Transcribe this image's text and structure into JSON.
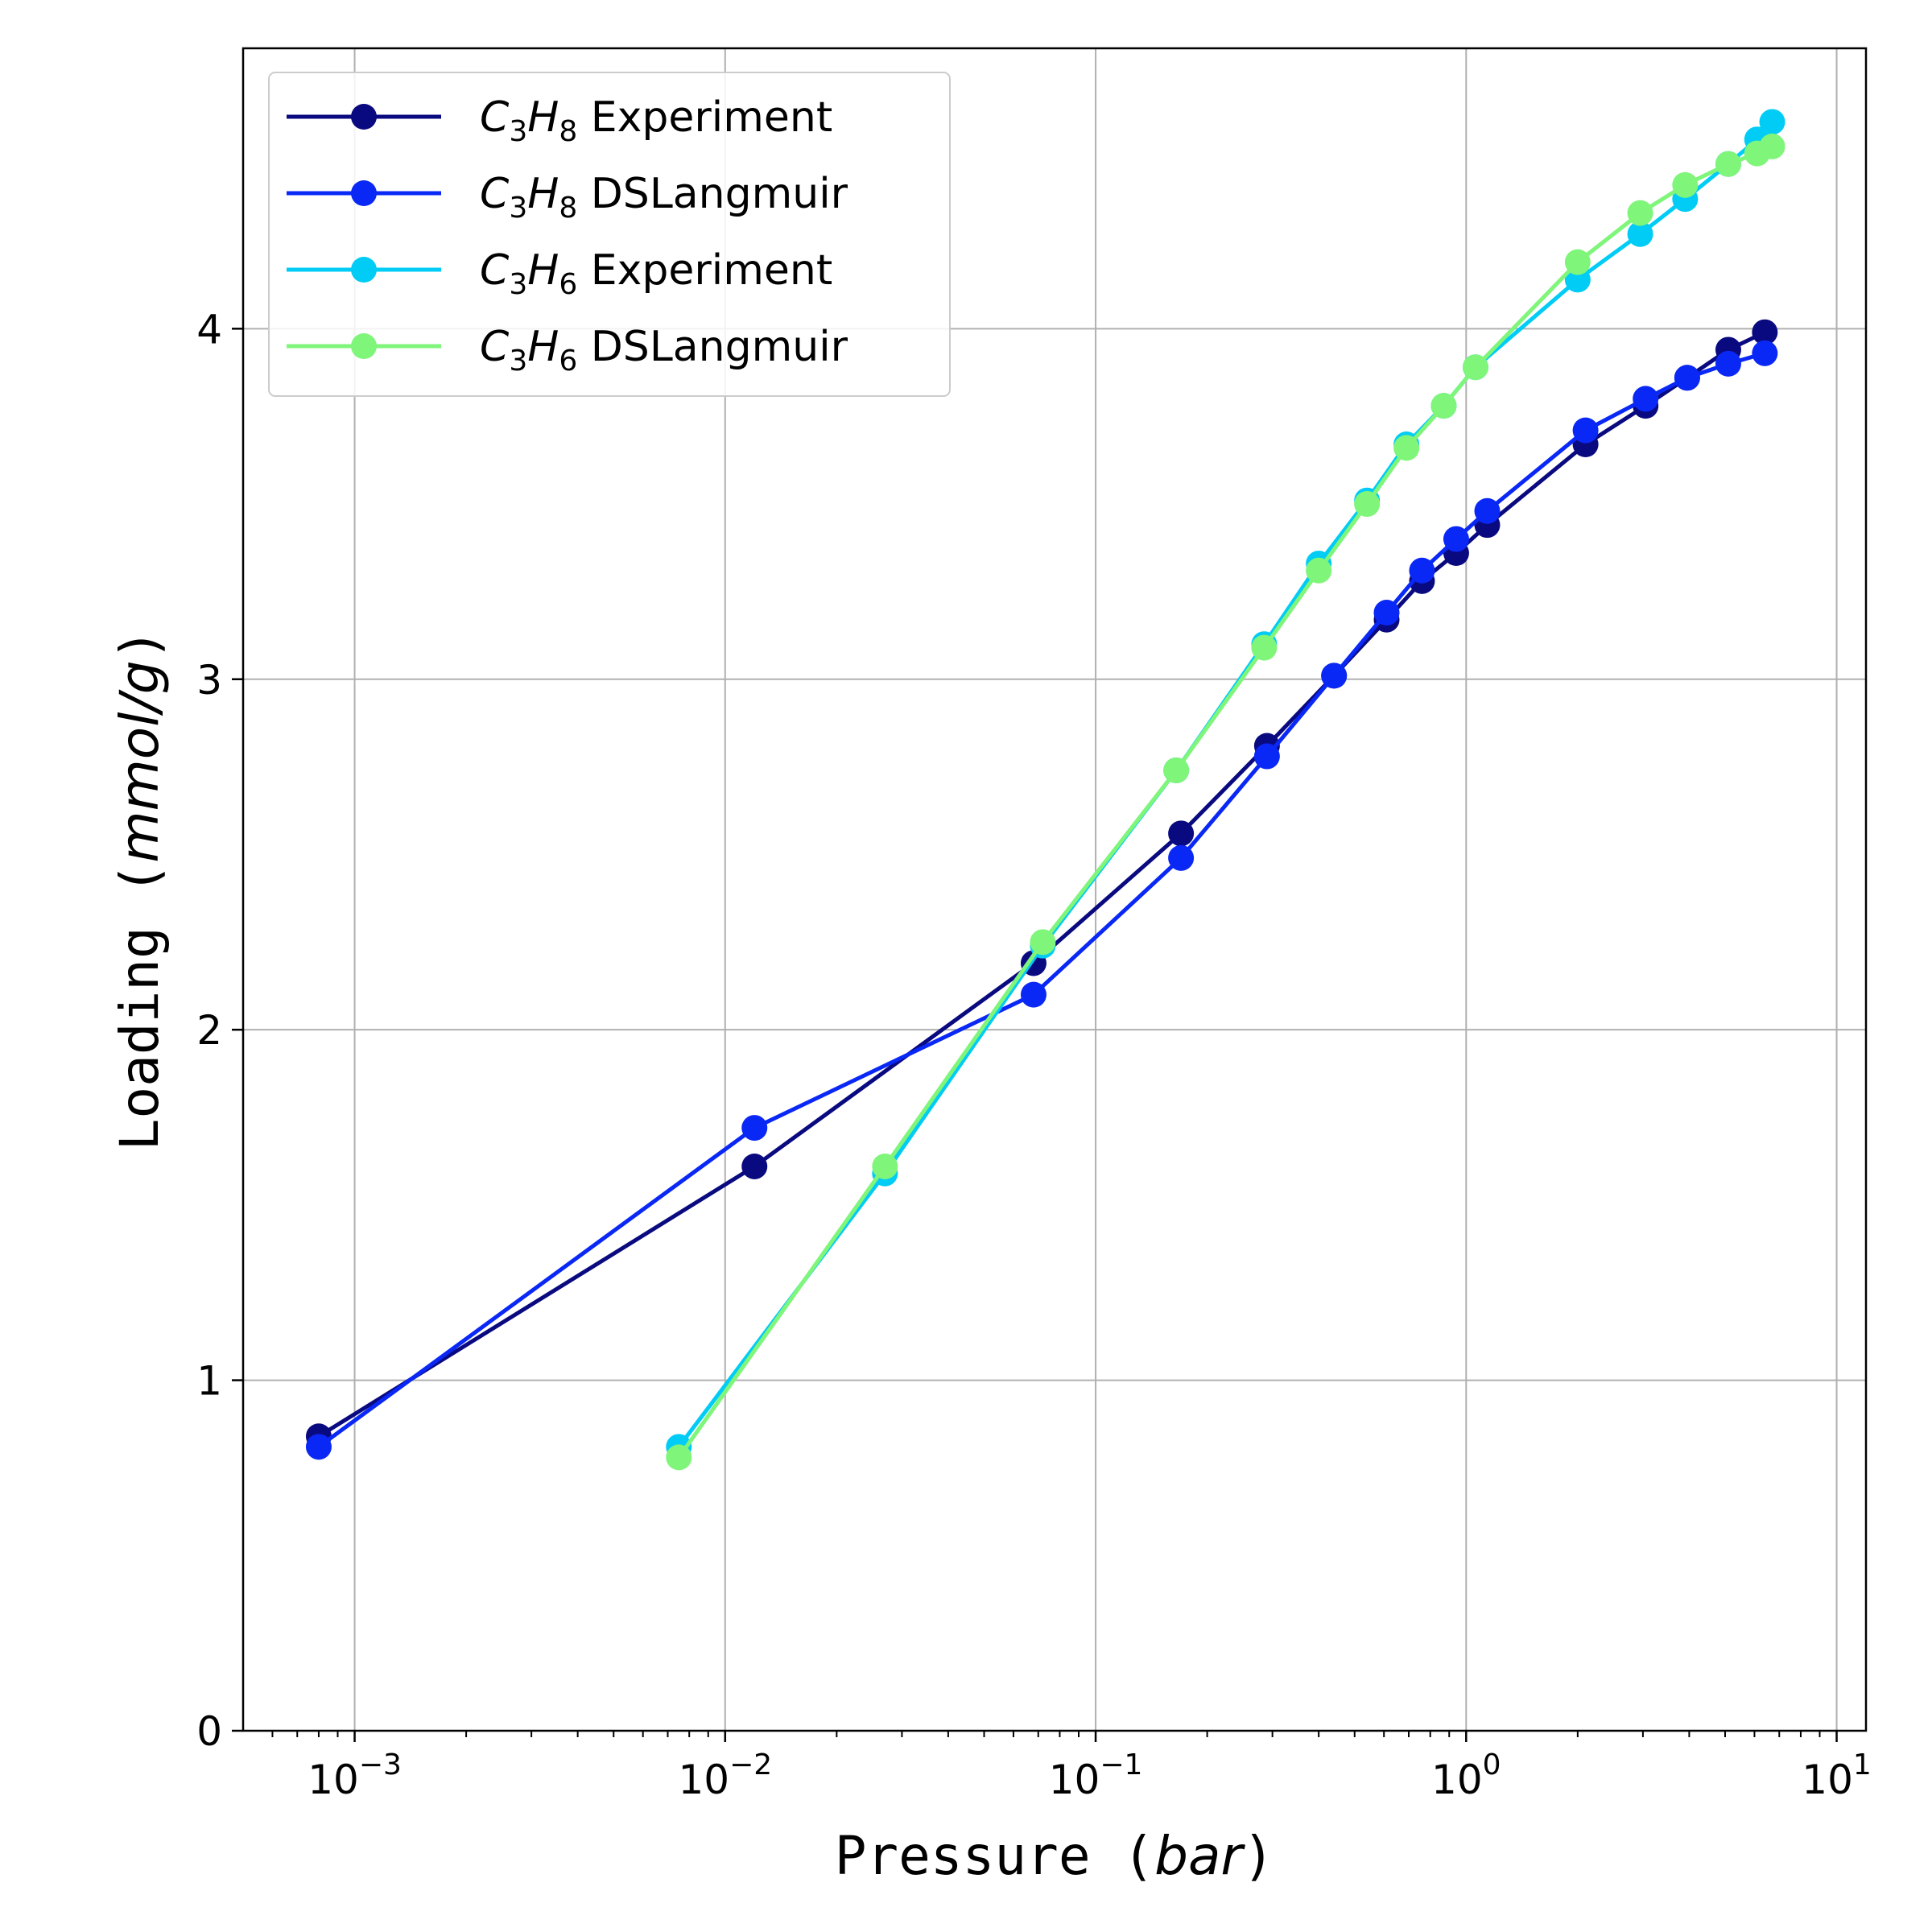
{
  "chart_data": {
    "type": "line",
    "xlabel": "Pressure",
    "xlabel_unit": "bar",
    "ylabel": "Loading",
    "ylabel_unit": "mmol/g",
    "xscale": "log",
    "xlim": [
      0.0005,
      12
    ],
    "ylim": [
      0,
      4.8
    ],
    "x_ticks": [
      0.001,
      0.01,
      0.1,
      1,
      10
    ],
    "x_tick_labels": [
      {
        "base": "10",
        "exp": "−3"
      },
      {
        "base": "10",
        "exp": "−2"
      },
      {
        "base": "10",
        "exp": "−1"
      },
      {
        "base": "10",
        "exp": "0"
      },
      {
        "base": "10",
        "exp": "1"
      }
    ],
    "y_ticks": [
      0,
      1,
      2,
      3,
      4
    ],
    "y_tick_labels": [
      "0",
      "1",
      "2",
      "3",
      "4"
    ],
    "grid": true,
    "legend_position": "top-left",
    "series": [
      {
        "label_main": "C",
        "label_sub1": "3",
        "label_mid": "H",
        "label_sub2": "8",
        "label_suffix": "Experiment",
        "color": "#0a0a80",
        "x": [
          0.0008,
          0.012,
          0.068,
          0.17,
          0.29,
          0.44,
          0.61,
          0.76,
          0.94,
          1.14,
          2.1,
          3.05,
          3.95,
          5.1,
          6.4
        ],
        "y": [
          0.84,
          1.61,
          2.19,
          2.56,
          2.81,
          3.01,
          3.17,
          3.28,
          3.36,
          3.44,
          3.67,
          3.78,
          3.86,
          3.94,
          3.99
        ]
      },
      {
        "label_main": "C",
        "label_sub1": "3",
        "label_mid": "H",
        "label_sub2": "8",
        "label_suffix": "DSLangmuir",
        "color": "#0a28f5",
        "x": [
          0.0008,
          0.012,
          0.068,
          0.17,
          0.29,
          0.44,
          0.61,
          0.76,
          0.94,
          1.14,
          2.1,
          3.05,
          3.95,
          5.1,
          6.4
        ],
        "y": [
          0.81,
          1.72,
          2.1,
          2.49,
          2.78,
          3.01,
          3.19,
          3.31,
          3.4,
          3.48,
          3.71,
          3.8,
          3.86,
          3.9,
          3.93
        ]
      },
      {
        "label_main": "C",
        "label_sub1": "3",
        "label_mid": "H",
        "label_sub2": "6",
        "label_suffix": "Experiment",
        "color": "#00ccf5",
        "x": [
          0.0075,
          0.027,
          0.072,
          0.165,
          0.285,
          0.4,
          0.54,
          0.69,
          0.87,
          1.06,
          2.0,
          2.95,
          3.9,
          5.1,
          6.1,
          6.7
        ],
        "y": [
          0.81,
          1.59,
          2.24,
          2.74,
          3.1,
          3.33,
          3.51,
          3.67,
          3.78,
          3.89,
          4.14,
          4.27,
          4.37,
          4.47,
          4.54,
          4.59
        ]
      },
      {
        "label_main": "C",
        "label_sub1": "3",
        "label_mid": "H",
        "label_sub2": "6",
        "label_suffix": "DSLangmuir",
        "color": "#7ff57a",
        "x": [
          0.0075,
          0.027,
          0.072,
          0.165,
          0.285,
          0.4,
          0.54,
          0.69,
          0.87,
          1.06,
          2.0,
          2.95,
          3.9,
          5.1,
          6.1,
          6.7
        ],
        "y": [
          0.78,
          1.61,
          2.25,
          2.74,
          3.09,
          3.31,
          3.5,
          3.66,
          3.78,
          3.89,
          4.19,
          4.33,
          4.41,
          4.47,
          4.5,
          4.52
        ]
      }
    ]
  }
}
